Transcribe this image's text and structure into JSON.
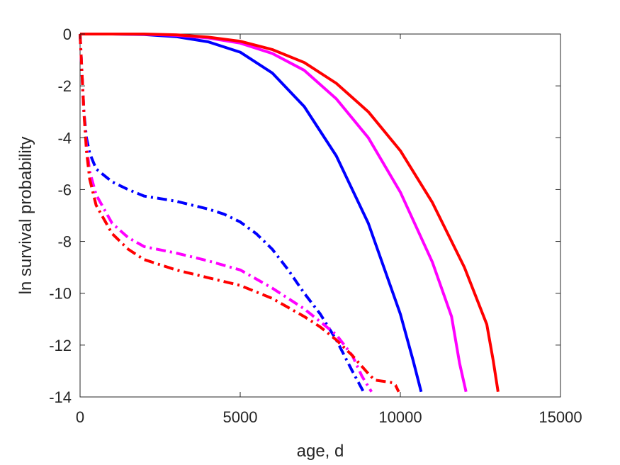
{
  "chart_data": {
    "type": "line",
    "title": "",
    "xlabel": "age, d",
    "ylabel": "ln survival probability",
    "xlim": [
      0,
      15000
    ],
    "ylim": [
      -14,
      0
    ],
    "xticks": [
      0,
      5000,
      10000,
      15000
    ],
    "yticks": [
      0,
      -2,
      -4,
      -6,
      -8,
      -10,
      -12,
      -14
    ],
    "x_tick_labels": [
      "0",
      "5000",
      "10000",
      "15000"
    ],
    "y_tick_labels": [
      "0",
      "-2",
      "-4",
      "-6",
      "-8",
      "-10",
      "-12",
      "-14"
    ],
    "grid": false,
    "legend": "none",
    "series": [
      {
        "color": "#0000ff",
        "style": "solid",
        "points": [
          [
            0,
            0
          ],
          [
            1000,
            0
          ],
          [
            2000,
            -0.02
          ],
          [
            3000,
            -0.1
          ],
          [
            4000,
            -0.3
          ],
          [
            5000,
            -0.7
          ],
          [
            6000,
            -1.5
          ],
          [
            7000,
            -2.8
          ],
          [
            8000,
            -4.7
          ],
          [
            9000,
            -7.3
          ],
          [
            10000,
            -10.8
          ],
          [
            10400,
            -12.6
          ],
          [
            10650,
            -13.8
          ]
        ]
      },
      {
        "color": "#ff00ff",
        "style": "solid",
        "points": [
          [
            0,
            0
          ],
          [
            1000,
            0
          ],
          [
            2000,
            -0.01
          ],
          [
            3000,
            -0.05
          ],
          [
            4000,
            -0.15
          ],
          [
            5000,
            -0.35
          ],
          [
            6000,
            -0.75
          ],
          [
            7000,
            -1.4
          ],
          [
            8000,
            -2.5
          ],
          [
            9000,
            -4.0
          ],
          [
            10000,
            -6.1
          ],
          [
            11000,
            -8.8
          ],
          [
            11600,
            -10.9
          ],
          [
            11850,
            -12.7
          ],
          [
            12050,
            -13.8
          ]
        ]
      },
      {
        "color": "#ff0000",
        "style": "solid",
        "points": [
          [
            0,
            0
          ],
          [
            2000,
            0
          ],
          [
            3000,
            -0.03
          ],
          [
            4000,
            -0.12
          ],
          [
            5000,
            -0.28
          ],
          [
            6000,
            -0.6
          ],
          [
            7000,
            -1.1
          ],
          [
            8000,
            -1.9
          ],
          [
            9000,
            -3.0
          ],
          [
            10000,
            -4.5
          ],
          [
            11000,
            -6.5
          ],
          [
            12000,
            -9.0
          ],
          [
            12700,
            -11.2
          ],
          [
            12900,
            -12.6
          ],
          [
            13050,
            -13.8
          ]
        ]
      },
      {
        "color": "#0000ff",
        "style": "dashdot",
        "points": [
          [
            0,
            0
          ],
          [
            60,
            -1.5
          ],
          [
            120,
            -3
          ],
          [
            200,
            -4
          ],
          [
            300,
            -4.6
          ],
          [
            500,
            -5.2
          ],
          [
            1000,
            -5.7
          ],
          [
            1500,
            -6.0
          ],
          [
            2000,
            -6.25
          ],
          [
            2500,
            -6.35
          ],
          [
            3000,
            -6.45
          ],
          [
            3500,
            -6.6
          ],
          [
            4000,
            -6.75
          ],
          [
            4500,
            -6.95
          ],
          [
            5000,
            -7.25
          ],
          [
            5500,
            -7.7
          ],
          [
            6000,
            -8.3
          ],
          [
            6500,
            -9.1
          ],
          [
            7000,
            -10.0
          ],
          [
            7500,
            -10.8
          ],
          [
            8000,
            -11.8
          ],
          [
            8500,
            -13.0
          ],
          [
            8850,
            -13.8
          ]
        ]
      },
      {
        "color": "#ff00ff",
        "style": "dashdot",
        "points": [
          [
            0,
            0
          ],
          [
            60,
            -1.5
          ],
          [
            120,
            -3
          ],
          [
            200,
            -4.3
          ],
          [
            300,
            -5.3
          ],
          [
            500,
            -6.2
          ],
          [
            1000,
            -7.3
          ],
          [
            1500,
            -7.85
          ],
          [
            2000,
            -8.2
          ],
          [
            3000,
            -8.45
          ],
          [
            4000,
            -8.75
          ],
          [
            5000,
            -9.1
          ],
          [
            6000,
            -9.8
          ],
          [
            7000,
            -10.6
          ],
          [
            7500,
            -11.1
          ],
          [
            8000,
            -11.6
          ],
          [
            8500,
            -12.4
          ],
          [
            8800,
            -13.2
          ],
          [
            9100,
            -13.8
          ]
        ]
      },
      {
        "color": "#ff0000",
        "style": "dashdot",
        "points": [
          [
            0,
            0
          ],
          [
            60,
            -1.5
          ],
          [
            120,
            -3
          ],
          [
            200,
            -4.5
          ],
          [
            300,
            -5.6
          ],
          [
            500,
            -6.6
          ],
          [
            1000,
            -7.7
          ],
          [
            1500,
            -8.3
          ],
          [
            2000,
            -8.7
          ],
          [
            3000,
            -9.1
          ],
          [
            4000,
            -9.4
          ],
          [
            5000,
            -9.7
          ],
          [
            6000,
            -10.2
          ],
          [
            7000,
            -10.9
          ],
          [
            7500,
            -11.3
          ],
          [
            8000,
            -11.8
          ],
          [
            8500,
            -12.4
          ],
          [
            9000,
            -13.1
          ],
          [
            9200,
            -13.35
          ],
          [
            9500,
            -13.4
          ],
          [
            9750,
            -13.45
          ],
          [
            9850,
            -13.55
          ],
          [
            9950,
            -13.8
          ]
        ]
      }
    ]
  }
}
